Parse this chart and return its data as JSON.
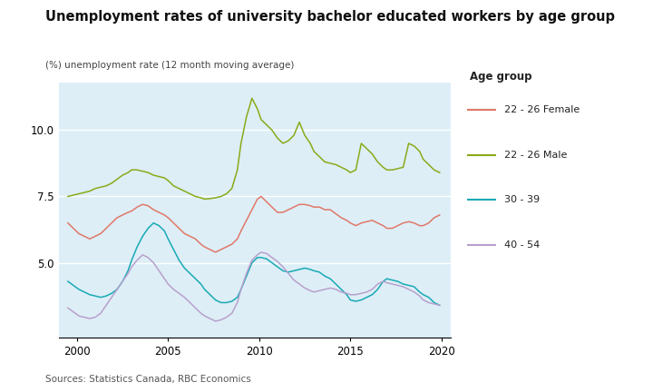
{
  "title": "Unemployment rates of university bachelor educated workers by age group",
  "ylabel": "(%) unemployment rate (12 month moving average)",
  "source": "Sources: Statistics Canada, RBC Economics",
  "xlim": [
    1999.0,
    2020.5
  ],
  "ylim": [
    2.2,
    11.8
  ],
  "yticks": [
    5.0,
    7.5,
    10.0
  ],
  "xticks": [
    2000,
    2005,
    2010,
    2015,
    2020
  ],
  "background_color": "#ddeef7",
  "figure_background": "#ffffff",
  "legend_title": "Age group",
  "legend_entries": [
    "22 - 26 Female",
    "22 - 26 Male",
    "30 - 39",
    "40 - 54"
  ],
  "colors": {
    "female_2226": "#e07868",
    "male_2226": "#8aaa18",
    "age_3039": "#18aab4",
    "age_4054": "#b8a0cc"
  },
  "series": {
    "female_2226": [
      [
        1999.5,
        6.5
      ],
      [
        1999.8,
        6.3
      ],
      [
        2000.1,
        6.1
      ],
      [
        2000.4,
        6.0
      ],
      [
        2000.7,
        5.9
      ],
      [
        2001.0,
        6.0
      ],
      [
        2001.3,
        6.1
      ],
      [
        2001.6,
        6.3
      ],
      [
        2001.9,
        6.5
      ],
      [
        2002.2,
        6.7
      ],
      [
        2002.5,
        6.8
      ],
      [
        2002.8,
        6.9
      ],
      [
        2003.0,
        6.95
      ],
      [
        2003.3,
        7.1
      ],
      [
        2003.6,
        7.2
      ],
      [
        2003.9,
        7.15
      ],
      [
        2004.2,
        7.0
      ],
      [
        2004.5,
        6.9
      ],
      [
        2004.8,
        6.8
      ],
      [
        2005.0,
        6.7
      ],
      [
        2005.3,
        6.5
      ],
      [
        2005.6,
        6.3
      ],
      [
        2005.9,
        6.1
      ],
      [
        2006.2,
        6.0
      ],
      [
        2006.5,
        5.9
      ],
      [
        2006.8,
        5.7
      ],
      [
        2007.0,
        5.6
      ],
      [
        2007.3,
        5.5
      ],
      [
        2007.6,
        5.4
      ],
      [
        2007.9,
        5.5
      ],
      [
        2008.2,
        5.6
      ],
      [
        2008.5,
        5.7
      ],
      [
        2008.8,
        5.9
      ],
      [
        2009.0,
        6.2
      ],
      [
        2009.3,
        6.6
      ],
      [
        2009.6,
        7.0
      ],
      [
        2009.9,
        7.4
      ],
      [
        2010.1,
        7.5
      ],
      [
        2010.4,
        7.3
      ],
      [
        2010.7,
        7.1
      ],
      [
        2011.0,
        6.9
      ],
      [
        2011.3,
        6.9
      ],
      [
        2011.6,
        7.0
      ],
      [
        2011.9,
        7.1
      ],
      [
        2012.2,
        7.2
      ],
      [
        2012.5,
        7.2
      ],
      [
        2012.8,
        7.15
      ],
      [
        2013.0,
        7.1
      ],
      [
        2013.3,
        7.1
      ],
      [
        2013.6,
        7.0
      ],
      [
        2013.9,
        7.0
      ],
      [
        2014.2,
        6.85
      ],
      [
        2014.5,
        6.7
      ],
      [
        2014.8,
        6.6
      ],
      [
        2015.0,
        6.5
      ],
      [
        2015.3,
        6.4
      ],
      [
        2015.6,
        6.5
      ],
      [
        2015.9,
        6.55
      ],
      [
        2016.2,
        6.6
      ],
      [
        2016.5,
        6.5
      ],
      [
        2016.8,
        6.4
      ],
      [
        2017.0,
        6.3
      ],
      [
        2017.3,
        6.3
      ],
      [
        2017.6,
        6.4
      ],
      [
        2017.9,
        6.5
      ],
      [
        2018.2,
        6.55
      ],
      [
        2018.5,
        6.5
      ],
      [
        2018.8,
        6.4
      ],
      [
        2019.0,
        6.4
      ],
      [
        2019.3,
        6.5
      ],
      [
        2019.6,
        6.7
      ],
      [
        2019.9,
        6.8
      ]
    ],
    "male_2226": [
      [
        1999.5,
        7.5
      ],
      [
        1999.8,
        7.55
      ],
      [
        2000.1,
        7.6
      ],
      [
        2000.4,
        7.65
      ],
      [
        2000.7,
        7.7
      ],
      [
        2001.0,
        7.8
      ],
      [
        2001.3,
        7.85
      ],
      [
        2001.6,
        7.9
      ],
      [
        2001.9,
        8.0
      ],
      [
        2002.2,
        8.15
      ],
      [
        2002.5,
        8.3
      ],
      [
        2002.8,
        8.4
      ],
      [
        2003.0,
        8.5
      ],
      [
        2003.3,
        8.5
      ],
      [
        2003.6,
        8.45
      ],
      [
        2003.9,
        8.4
      ],
      [
        2004.2,
        8.3
      ],
      [
        2004.5,
        8.25
      ],
      [
        2004.8,
        8.2
      ],
      [
        2005.0,
        8.1
      ],
      [
        2005.3,
        7.9
      ],
      [
        2005.6,
        7.8
      ],
      [
        2005.9,
        7.7
      ],
      [
        2006.2,
        7.6
      ],
      [
        2006.5,
        7.5
      ],
      [
        2006.8,
        7.45
      ],
      [
        2007.0,
        7.4
      ],
      [
        2007.3,
        7.42
      ],
      [
        2007.6,
        7.45
      ],
      [
        2007.9,
        7.5
      ],
      [
        2008.2,
        7.6
      ],
      [
        2008.5,
        7.8
      ],
      [
        2008.8,
        8.5
      ],
      [
        2009.0,
        9.5
      ],
      [
        2009.3,
        10.5
      ],
      [
        2009.6,
        11.2
      ],
      [
        2009.9,
        10.8
      ],
      [
        2010.1,
        10.4
      ],
      [
        2010.4,
        10.2
      ],
      [
        2010.7,
        10.0
      ],
      [
        2011.0,
        9.7
      ],
      [
        2011.3,
        9.5
      ],
      [
        2011.6,
        9.6
      ],
      [
        2011.9,
        9.8
      ],
      [
        2012.2,
        10.3
      ],
      [
        2012.5,
        9.8
      ],
      [
        2012.8,
        9.5
      ],
      [
        2013.0,
        9.2
      ],
      [
        2013.3,
        9.0
      ],
      [
        2013.6,
        8.8
      ],
      [
        2013.9,
        8.75
      ],
      [
        2014.2,
        8.7
      ],
      [
        2014.5,
        8.6
      ],
      [
        2014.8,
        8.5
      ],
      [
        2015.0,
        8.4
      ],
      [
        2015.3,
        8.5
      ],
      [
        2015.6,
        9.5
      ],
      [
        2015.9,
        9.3
      ],
      [
        2016.2,
        9.1
      ],
      [
        2016.5,
        8.8
      ],
      [
        2016.8,
        8.6
      ],
      [
        2017.0,
        8.5
      ],
      [
        2017.3,
        8.5
      ],
      [
        2017.6,
        8.55
      ],
      [
        2017.9,
        8.6
      ],
      [
        2018.2,
        9.5
      ],
      [
        2018.5,
        9.4
      ],
      [
        2018.8,
        9.2
      ],
      [
        2019.0,
        8.9
      ],
      [
        2019.3,
        8.7
      ],
      [
        2019.6,
        8.5
      ],
      [
        2019.9,
        8.4
      ]
    ],
    "age_3039": [
      [
        1999.5,
        4.3
      ],
      [
        1999.8,
        4.15
      ],
      [
        2000.1,
        4.0
      ],
      [
        2000.4,
        3.9
      ],
      [
        2000.7,
        3.8
      ],
      [
        2001.0,
        3.75
      ],
      [
        2001.3,
        3.7
      ],
      [
        2001.6,
        3.75
      ],
      [
        2001.9,
        3.85
      ],
      [
        2002.2,
        4.0
      ],
      [
        2002.5,
        4.3
      ],
      [
        2002.8,
        4.7
      ],
      [
        2003.0,
        5.1
      ],
      [
        2003.3,
        5.6
      ],
      [
        2003.6,
        6.0
      ],
      [
        2003.9,
        6.3
      ],
      [
        2004.2,
        6.5
      ],
      [
        2004.5,
        6.4
      ],
      [
        2004.8,
        6.2
      ],
      [
        2005.0,
        5.9
      ],
      [
        2005.3,
        5.5
      ],
      [
        2005.6,
        5.1
      ],
      [
        2005.9,
        4.8
      ],
      [
        2006.2,
        4.6
      ],
      [
        2006.5,
        4.4
      ],
      [
        2006.8,
        4.2
      ],
      [
        2007.0,
        4.0
      ],
      [
        2007.3,
        3.8
      ],
      [
        2007.6,
        3.6
      ],
      [
        2007.9,
        3.5
      ],
      [
        2008.2,
        3.5
      ],
      [
        2008.5,
        3.55
      ],
      [
        2008.8,
        3.7
      ],
      [
        2009.0,
        4.0
      ],
      [
        2009.3,
        4.5
      ],
      [
        2009.6,
        5.0
      ],
      [
        2009.9,
        5.2
      ],
      [
        2010.1,
        5.2
      ],
      [
        2010.4,
        5.15
      ],
      [
        2010.7,
        5.0
      ],
      [
        2011.0,
        4.85
      ],
      [
        2011.3,
        4.7
      ],
      [
        2011.6,
        4.65
      ],
      [
        2011.9,
        4.7
      ],
      [
        2012.2,
        4.75
      ],
      [
        2012.5,
        4.8
      ],
      [
        2012.8,
        4.75
      ],
      [
        2013.0,
        4.7
      ],
      [
        2013.3,
        4.65
      ],
      [
        2013.6,
        4.5
      ],
      [
        2013.9,
        4.4
      ],
      [
        2014.2,
        4.2
      ],
      [
        2014.5,
        4.0
      ],
      [
        2014.8,
        3.8
      ],
      [
        2015.0,
        3.6
      ],
      [
        2015.3,
        3.55
      ],
      [
        2015.6,
        3.6
      ],
      [
        2015.9,
        3.7
      ],
      [
        2016.2,
        3.8
      ],
      [
        2016.5,
        4.0
      ],
      [
        2016.8,
        4.3
      ],
      [
        2017.0,
        4.4
      ],
      [
        2017.3,
        4.35
      ],
      [
        2017.6,
        4.3
      ],
      [
        2017.9,
        4.2
      ],
      [
        2018.2,
        4.15
      ],
      [
        2018.5,
        4.1
      ],
      [
        2018.8,
        3.9
      ],
      [
        2019.0,
        3.8
      ],
      [
        2019.3,
        3.7
      ],
      [
        2019.6,
        3.5
      ],
      [
        2019.9,
        3.4
      ]
    ],
    "age_4054": [
      [
        1999.5,
        3.3
      ],
      [
        1999.8,
        3.15
      ],
      [
        2000.1,
        3.0
      ],
      [
        2000.4,
        2.95
      ],
      [
        2000.7,
        2.9
      ],
      [
        2001.0,
        2.95
      ],
      [
        2001.3,
        3.1
      ],
      [
        2001.6,
        3.4
      ],
      [
        2001.9,
        3.7
      ],
      [
        2002.2,
        4.0
      ],
      [
        2002.5,
        4.3
      ],
      [
        2002.8,
        4.6
      ],
      [
        2003.0,
        4.85
      ],
      [
        2003.3,
        5.1
      ],
      [
        2003.6,
        5.3
      ],
      [
        2003.9,
        5.2
      ],
      [
        2004.2,
        5.0
      ],
      [
        2004.5,
        4.7
      ],
      [
        2004.8,
        4.4
      ],
      [
        2005.0,
        4.2
      ],
      [
        2005.3,
        4.0
      ],
      [
        2005.6,
        3.85
      ],
      [
        2005.9,
        3.7
      ],
      [
        2006.2,
        3.5
      ],
      [
        2006.5,
        3.3
      ],
      [
        2006.8,
        3.1
      ],
      [
        2007.0,
        3.0
      ],
      [
        2007.3,
        2.9
      ],
      [
        2007.6,
        2.8
      ],
      [
        2007.9,
        2.85
      ],
      [
        2008.2,
        2.95
      ],
      [
        2008.5,
        3.1
      ],
      [
        2008.8,
        3.5
      ],
      [
        2009.0,
        4.0
      ],
      [
        2009.3,
        4.6
      ],
      [
        2009.6,
        5.1
      ],
      [
        2009.9,
        5.3
      ],
      [
        2010.1,
        5.4
      ],
      [
        2010.4,
        5.35
      ],
      [
        2010.7,
        5.2
      ],
      [
        2011.0,
        5.05
      ],
      [
        2011.3,
        4.85
      ],
      [
        2011.6,
        4.6
      ],
      [
        2011.9,
        4.35
      ],
      [
        2012.2,
        4.2
      ],
      [
        2012.5,
        4.05
      ],
      [
        2012.8,
        3.95
      ],
      [
        2013.0,
        3.9
      ],
      [
        2013.3,
        3.95
      ],
      [
        2013.6,
        4.0
      ],
      [
        2013.9,
        4.05
      ],
      [
        2014.2,
        4.0
      ],
      [
        2014.5,
        3.9
      ],
      [
        2014.8,
        3.85
      ],
      [
        2015.0,
        3.8
      ],
      [
        2015.3,
        3.8
      ],
      [
        2015.6,
        3.85
      ],
      [
        2015.9,
        3.9
      ],
      [
        2016.2,
        4.0
      ],
      [
        2016.5,
        4.2
      ],
      [
        2016.8,
        4.3
      ],
      [
        2017.0,
        4.25
      ],
      [
        2017.3,
        4.2
      ],
      [
        2017.6,
        4.15
      ],
      [
        2017.9,
        4.1
      ],
      [
        2018.2,
        4.0
      ],
      [
        2018.5,
        3.9
      ],
      [
        2018.8,
        3.75
      ],
      [
        2019.0,
        3.6
      ],
      [
        2019.3,
        3.5
      ],
      [
        2019.6,
        3.45
      ],
      [
        2019.9,
        3.4
      ]
    ]
  }
}
